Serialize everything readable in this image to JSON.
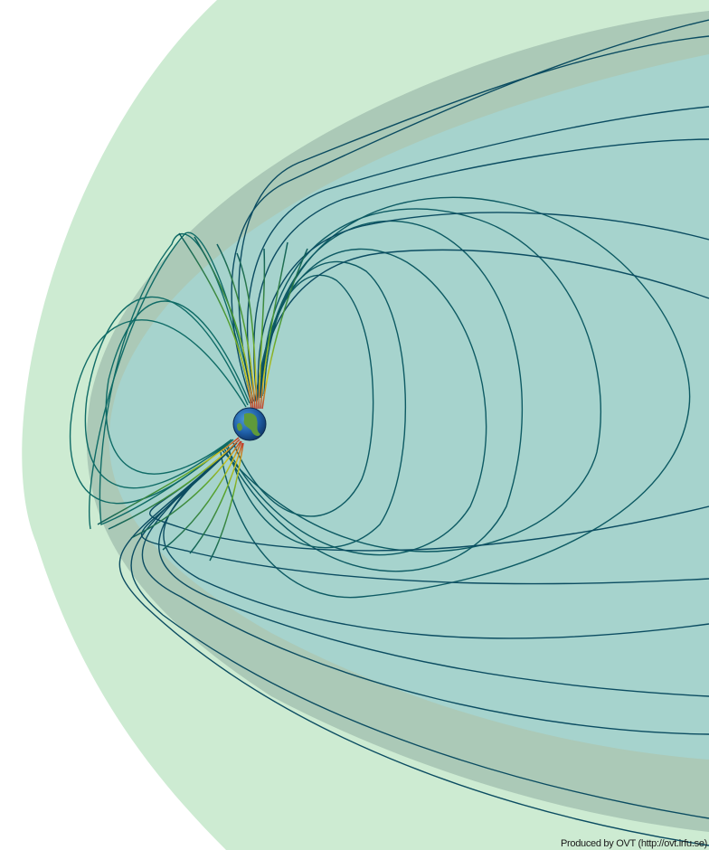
{
  "credit": {
    "text": "Produced by OVT (http://ovt.irfu.se)"
  },
  "colors": {
    "background": "#ffffff",
    "bow_shock": "#cdebd2",
    "magnetosheath": "#abc9b7",
    "magnetopause_inner": "#a6d3cd",
    "field_line_dark": "#0a4f5e",
    "field_line_mid": "#12806a",
    "field_line_polar": "#9ac42a",
    "earth_ocean": "#1f5fa8",
    "earth_land": "#5f9a3a"
  },
  "icons": {
    "earth": "earth-globe-icon"
  }
}
